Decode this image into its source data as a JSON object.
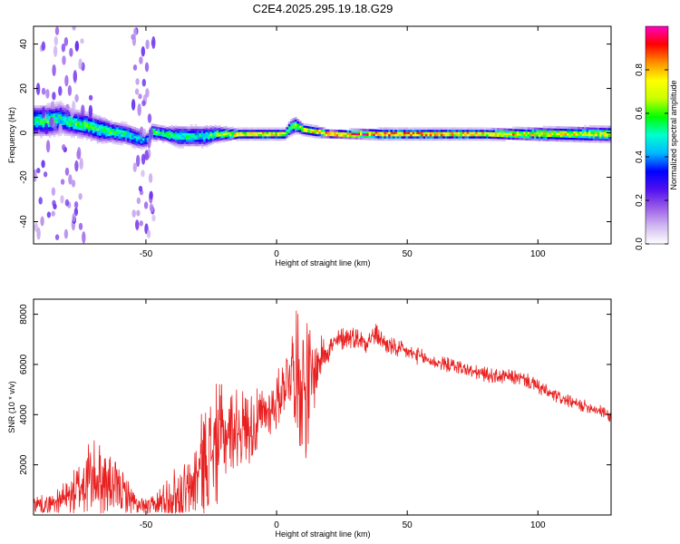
{
  "figure_title": "C2E4.2025.295.19.18.G29",
  "chart_data": [
    {
      "type": "heatmap",
      "xlabel": "Height of straight line (km)",
      "ylabel": "Frequency (Hz)",
      "xlim": [
        -93,
        128
      ],
      "ylim": [
        -50,
        48
      ],
      "x_ticks": [
        -50,
        0,
        50,
        100
      ],
      "y_ticks": [
        -40,
        -20,
        0,
        20,
        40
      ],
      "colorbar": {
        "label": "Normalized spectral amplitude",
        "range": [
          0,
          1
        ],
        "ticks": [
          0.0,
          0.2,
          0.4,
          0.6,
          0.8
        ],
        "colors": [
          "#ffffff",
          "#d0b8f0",
          "#9a5ce8",
          "#5010f0",
          "#0000ff",
          "#00b8ff",
          "#00ffd0",
          "#00ff00",
          "#c8ff00",
          "#ffff00",
          "#ff9000",
          "#ff0000",
          "#ff00c0"
        ]
      },
      "ridge": {
        "x": [
          -93,
          -88,
          -83,
          -78,
          -73,
          -68,
          -63,
          -58,
          -53,
          -50,
          -48,
          -43,
          -38,
          -33,
          -28,
          -23,
          -15,
          -5,
          0,
          3,
          5,
          7,
          10,
          15,
          20,
          40,
          60,
          80,
          100,
          128
        ],
        "frequency": [
          6,
          6,
          7,
          5,
          4,
          2,
          1,
          0,
          -2,
          -3,
          1,
          0,
          -1,
          -1,
          -1,
          0,
          0,
          0,
          0,
          0,
          3,
          4,
          2,
          1,
          0,
          0,
          0,
          0,
          0,
          0
        ],
        "halfwidth": [
          6,
          6,
          6,
          5,
          5,
          5,
          4,
          4,
          4,
          3,
          3,
          3,
          4,
          4,
          4,
          3,
          2,
          2,
          2,
          2,
          3,
          3,
          2,
          2,
          1.5,
          2,
          2,
          2,
          2.5,
          3
        ],
        "peak_amp": [
          0.55,
          0.6,
          0.55,
          0.6,
          0.6,
          0.6,
          0.6,
          0.55,
          0.5,
          0.45,
          0.65,
          0.6,
          0.55,
          0.55,
          0.55,
          0.65,
          0.8,
          0.85,
          0.85,
          0.8,
          0.6,
          0.7,
          0.8,
          0.9,
          0.95,
          0.95,
          0.9,
          0.85,
          0.8,
          0.75
        ]
      }
    },
    {
      "type": "line",
      "xlabel": "Height of straight line (km)",
      "ylabel": "SNR (10 * v/v)",
      "xlim": [
        -93,
        128
      ],
      "ylim": [
        0,
        8600
      ],
      "x_ticks": [
        -50,
        0,
        50,
        100
      ],
      "y_ticks": [
        2000,
        4000,
        6000,
        8000
      ],
      "line_color": "#e82020",
      "series": [
        {
          "name": "SNR",
          "x": [
            -93,
            -88,
            -83,
            -78,
            -73,
            -68,
            -63,
            -58,
            -53,
            -48,
            -43,
            -38,
            -33,
            -28,
            -23,
            -18,
            -13,
            -8,
            -3,
            0,
            3,
            6,
            9,
            12,
            15,
            18,
            22,
            26,
            30,
            34,
            38,
            42,
            46,
            50,
            55,
            60,
            65,
            70,
            75,
            80,
            85,
            90,
            95,
            100,
            105,
            110,
            115,
            120,
            125,
            128
          ],
          "mean": [
            500,
            400,
            600,
            800,
            1400,
            1500,
            1100,
            900,
            300,
            300,
            600,
            900,
            1000,
            2200,
            2800,
            3400,
            3500,
            3600,
            4200,
            4500,
            5300,
            6000,
            5500,
            5000,
            5800,
            6500,
            6800,
            7100,
            7100,
            6900,
            7200,
            6800,
            6600,
            6500,
            6300,
            6100,
            6000,
            5900,
            5700,
            5600,
            5500,
            5500,
            5400,
            5100,
            4800,
            4600,
            4400,
            4300,
            4100,
            3900
          ],
          "amp": [
            400,
            350,
            500,
            900,
            1600,
            1500,
            1200,
            800,
            400,
            400,
            900,
            1200,
            1400,
            2200,
            2500,
            1700,
            1600,
            1400,
            1100,
            1200,
            1200,
            1800,
            3000,
            3000,
            1200,
            700,
            500,
            500,
            450,
            450,
            450,
            400,
            400,
            350,
            350,
            300,
            300,
            300,
            300,
            300,
            300,
            300,
            300,
            300,
            300,
            250,
            250,
            250,
            250,
            250
          ]
        }
      ]
    }
  ]
}
